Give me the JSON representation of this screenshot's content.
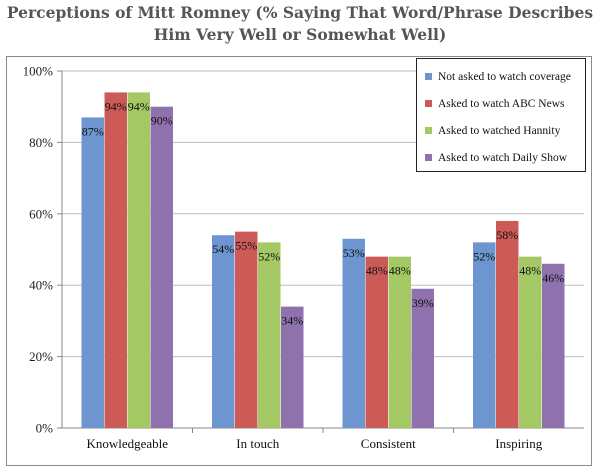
{
  "colors": {
    "series": [
      "#6d95cf",
      "#cc5b57",
      "#a4c964",
      "#8e71ad"
    ],
    "grid": "#bdbdbd",
    "axis": "#888888"
  },
  "chart_data": {
    "type": "bar",
    "title": "Perceptions of Mitt Romney (% Saying That Word/Phrase Describes Him Very Well or Somewhat Well)",
    "categories": [
      "Knowledgeable",
      "In touch",
      "Consistent",
      "Inspiring"
    ],
    "series": [
      {
        "name": "Not asked to watch coverage",
        "values": [
          87,
          54,
          53,
          52
        ],
        "labels": [
          "87%",
          "54%",
          "53%",
          "52%"
        ]
      },
      {
        "name": "Asked to watch ABC News",
        "values": [
          94,
          55,
          48,
          58
        ],
        "labels": [
          "94%",
          "55%",
          "48%",
          "58%"
        ]
      },
      {
        "name": "Asked to watched Hannity",
        "values": [
          94,
          52,
          48,
          48
        ],
        "labels": [
          "94%",
          "52%",
          "48%",
          "48%"
        ]
      },
      {
        "name": "Asked to watch Daily Show",
        "values": [
          90,
          34,
          39,
          46
        ],
        "labels": [
          "90%",
          "34%",
          "39%",
          "46%"
        ]
      }
    ],
    "yticks": [
      "0%",
      "20%",
      "40%",
      "60%",
      "80%",
      "100%"
    ],
    "ylim": [
      0,
      100
    ],
    "grid": true,
    "legend_position": "top-right"
  }
}
